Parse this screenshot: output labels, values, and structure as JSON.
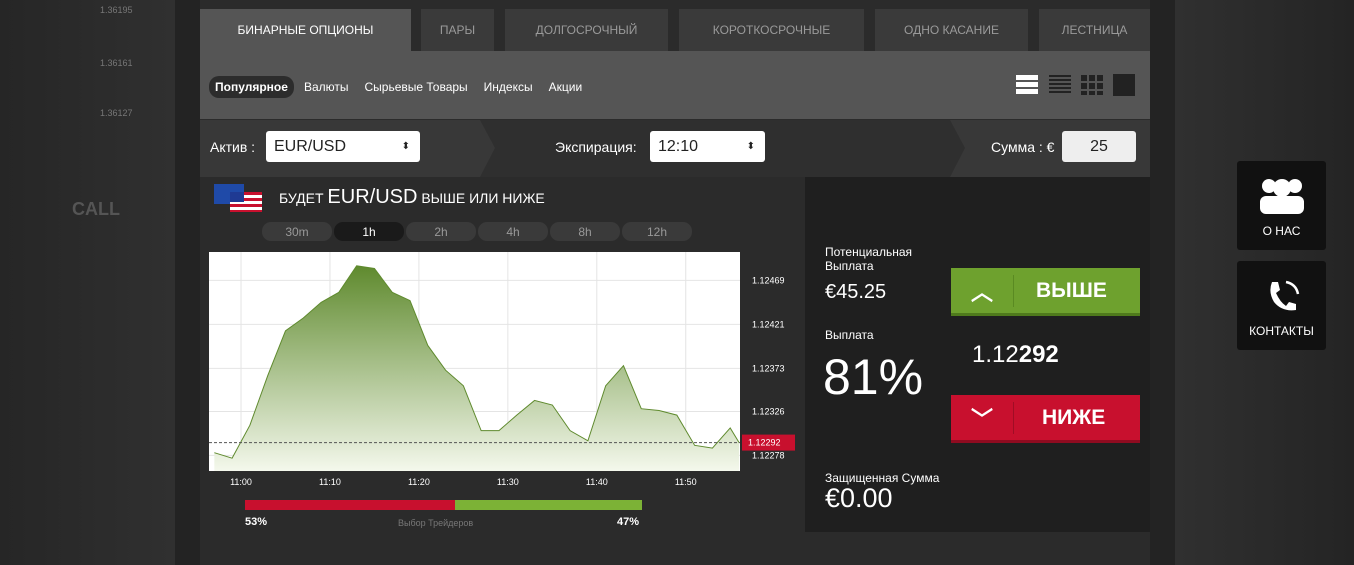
{
  "background": {
    "ticker_labels": [
      "1.36195",
      "1.36161",
      "1.36127"
    ],
    "call_label": "CALL"
  },
  "tabs": [
    "БИНАРНЫЕ ОПЦИОНЫ",
    "ПАРЫ",
    "ДОЛГОСРОЧНЫЙ",
    "КОРОТКОСРОЧНЫЕ",
    "ОДНО КАСАНИЕ",
    "ЛЕСТНИЦА"
  ],
  "subtabs": [
    "Популярное",
    "Валюты",
    "Сырьевые Товары",
    "Индексы",
    "Акции"
  ],
  "trade_bar": {
    "asset_label": "Актив :",
    "asset": "EUR/USD",
    "expiry_label": "Экспирация:",
    "expiry": "12:10",
    "amount_label": "Сумма : €",
    "amount": "25"
  },
  "heading": {
    "prefix": "БУДЕТ",
    "asset": "EUR/USD",
    "suffix": "ВЫШЕ ИЛИ НИЖЕ"
  },
  "timeframes": [
    "30m",
    "1h",
    "2h",
    "4h",
    "8h",
    "12h"
  ],
  "chart": {
    "type": "area",
    "color": "#5f8a2e",
    "grid": true,
    "x": [
      -3,
      -1,
      1,
      3,
      5,
      7,
      9,
      11,
      13,
      15,
      17,
      19,
      21,
      23,
      25,
      27,
      29,
      31,
      33,
      35,
      37,
      39,
      41,
      43,
      45,
      47,
      49,
      51,
      53,
      55,
      56
    ],
    "values": [
      1.12281,
      1.12275,
      1.12311,
      1.12365,
      1.12414,
      1.12428,
      1.12445,
      1.12456,
      1.12485,
      1.12482,
      1.12456,
      1.12447,
      1.12398,
      1.12371,
      1.12354,
      1.12305,
      1.12305,
      1.12322,
      1.12338,
      1.12333,
      1.12305,
      1.12294,
      1.12354,
      1.12376,
      1.12329,
      1.12327,
      1.12322,
      1.12289,
      1.12286,
      1.12308,
      1.12292
    ],
    "xlim": [
      -3.6,
      56.1
    ],
    "ylim": [
      1.12261,
      1.125
    ],
    "yticks": [
      1.12278,
      1.12326,
      1.12373,
      1.12421,
      1.12469
    ],
    "xticks": [
      {
        "value": 0,
        "label": "11:00"
      },
      {
        "value": 10,
        "label": "11:10"
      },
      {
        "value": 20,
        "label": "11:20"
      },
      {
        "value": 30,
        "label": "11:30"
      },
      {
        "value": 40,
        "label": "11:40"
      },
      {
        "value": 50,
        "label": "11:50"
      }
    ],
    "current": 1.12292
  },
  "traders": {
    "sell": "53%",
    "label": "Выбор Трейдеров",
    "buy": "47%"
  },
  "panel": {
    "potential_label": "Потенциальная Выплата",
    "potential": "€45.25",
    "payout_label": "Выплата",
    "payout": "81%",
    "up": "ВЫШЕ",
    "price_prefix": "1.12",
    "price_bold": "292",
    "down": "НИЖЕ",
    "protected_label": "Защищенная Сумма",
    "protected": "€0.00"
  },
  "sidebar": [
    "О НАС",
    "КОНТАКТЫ"
  ]
}
